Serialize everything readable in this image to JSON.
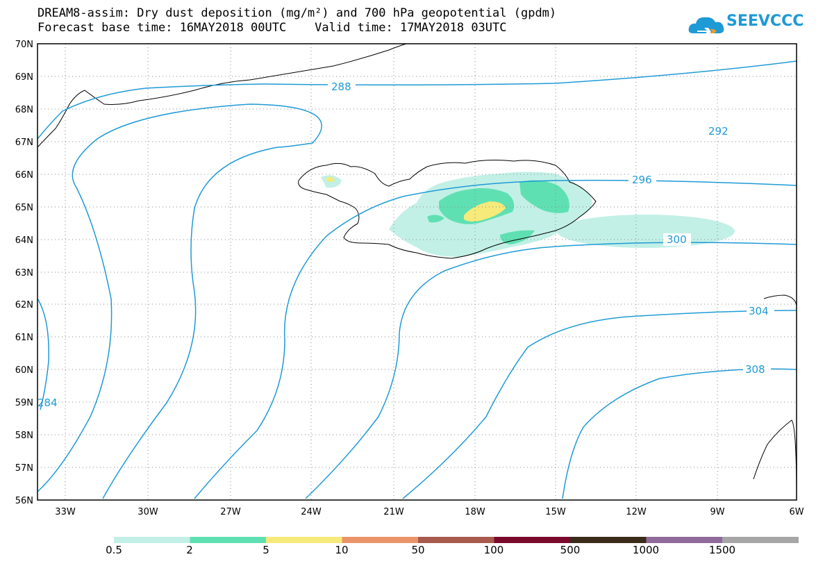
{
  "header": {
    "title_line1": "DREAM8-assim: Dry dust deposition (mg/m²) and 700 hPa geopotential (gpdm)",
    "title_line2": "Forecast base time: 16MAY2018 00UTC    Valid time: 17MAY2018 03UTC",
    "logo_text": "SEEVCCC",
    "logo_icon": "cloud-icon",
    "logo_color": "#1e9ad6"
  },
  "map": {
    "lat_range": [
      56,
      70
    ],
    "lon_range": [
      -34.3,
      -6
    ],
    "lat_labels": [
      "70N",
      "69N",
      "68N",
      "67N",
      "66N",
      "65N",
      "64N",
      "63N",
      "62N",
      "61N",
      "60N",
      "59N",
      "58N",
      "57N",
      "56N"
    ],
    "lon_labels": [
      "33W",
      "30W",
      "27W",
      "24W",
      "21W",
      "18W",
      "15W",
      "12W",
      "9W",
      "6W"
    ],
    "contour_color": "#1e9ad6",
    "contour_labels": [
      "288",
      "292",
      "296",
      "300",
      "304",
      "308",
      "284"
    ]
  },
  "colorbar": {
    "labels": [
      "0.5",
      "2",
      "5",
      "10",
      "50",
      "100",
      "500",
      "1000",
      "1500"
    ],
    "colors": [
      "#c2f0e6",
      "#5fe0b3",
      "#f5ea7a",
      "#ec9469",
      "#a85b4c",
      "#7a0a2c",
      "#3a2b1a",
      "#8f6a9a",
      "#a6a6a6"
    ]
  }
}
